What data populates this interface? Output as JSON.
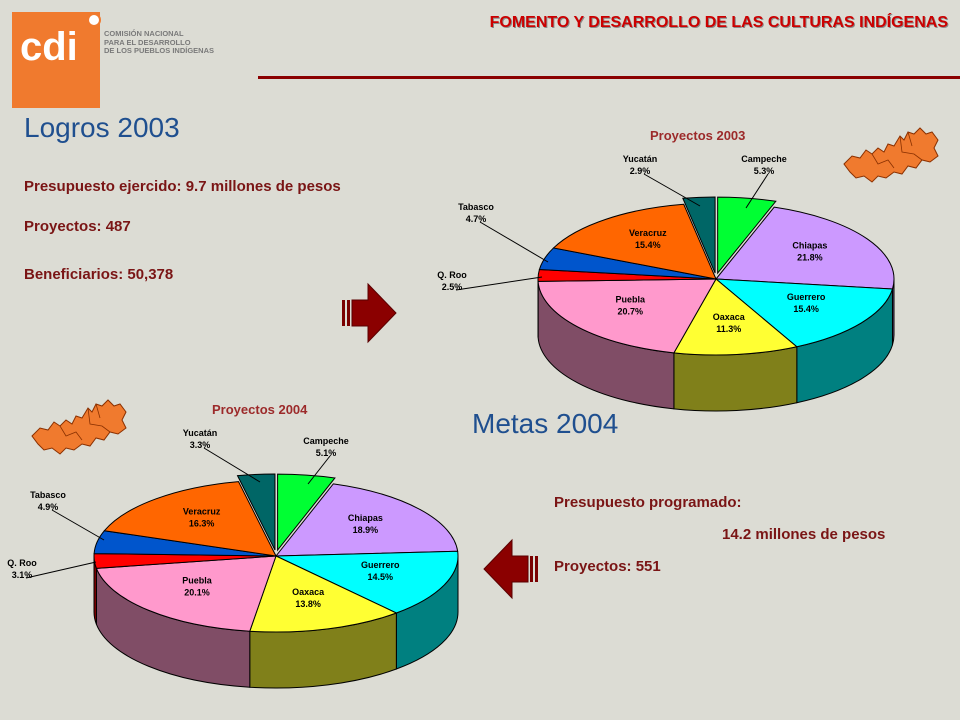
{
  "header": {
    "logo_letters": "cdi",
    "org_name_lines": [
      "COMISIÓN NACIONAL",
      "PARA EL DESARROLLO",
      "DE LOS PUEBLOS INDÍGENAS"
    ],
    "title": "FOMENTO Y DESARROLLO DE LAS CULTURAS INDÍGENAS"
  },
  "logros": {
    "title": "Logros 2003",
    "presupuesto": "Presupuesto ejercido: 9.7 millones de pesos",
    "proyectos": "Proyectos: 487",
    "beneficiarios": "Beneficiarios: 50,378"
  },
  "metas": {
    "title": "Metas 2004",
    "presupuesto_label": "Presupuesto programado:",
    "presupuesto_value": "14.2 millones de pesos",
    "proyectos": "Proyectos: 551"
  },
  "colors": {
    "Campeche": "#00ff33",
    "Chiapas": "#cc99ff",
    "Guerrero": "#00ffff",
    "Oaxaca": "#ffff33",
    "Puebla": "#ff99cc",
    "Q. Roo": "#ff0000",
    "Tabasco": "#0055cc",
    "Veracruz": "#ff6600",
    "Yucatán": "#006666"
  },
  "chart_data": [
    {
      "type": "pie",
      "title": "Proyectos 2003",
      "slices": [
        {
          "label": "Campeche",
          "value": 5.3,
          "value_label": "5.3%"
        },
        {
          "label": "Chiapas",
          "value": 21.8,
          "value_label": "21.8%"
        },
        {
          "label": "Guerrero",
          "value": 15.4,
          "value_label": "15.4%"
        },
        {
          "label": "Oaxaca",
          "value": 11.3,
          "value_label": "11.3%"
        },
        {
          "label": "Puebla",
          "value": 20.7,
          "value_label": "20.7%"
        },
        {
          "label": "Q. Roo",
          "value": 2.5,
          "value_label": "2.5%"
        },
        {
          "label": "Tabasco",
          "value": 4.7,
          "value_label": "4.7%"
        },
        {
          "label": "Veracruz",
          "value": 15.4,
          "value_label": "15.4%"
        },
        {
          "label": "Yucatán",
          "value": 2.9,
          "value_label": "2.9%"
        }
      ]
    },
    {
      "type": "pie",
      "title": "Proyectos 2004",
      "slices": [
        {
          "label": "Campeche",
          "value": 5.1,
          "value_label": "5.1%"
        },
        {
          "label": "Chiapas",
          "value": 18.9,
          "value_label": "18.9%"
        },
        {
          "label": "Guerrero",
          "value": 14.5,
          "value_label": "14.5%"
        },
        {
          "label": "Oaxaca",
          "value": 13.8,
          "value_label": "13.8%"
        },
        {
          "label": "Puebla",
          "value": 20.1,
          "value_label": "20.1%"
        },
        {
          "label": "Q. Roo",
          "value": 3.1,
          "value_label": "3.1%"
        },
        {
          "label": "Tabasco",
          "value": 4.9,
          "value_label": "4.9%"
        },
        {
          "label": "Veracruz",
          "value": 16.3,
          "value_label": "16.3%"
        },
        {
          "label": "Yucatán",
          "value": 3.3,
          "value_label": "3.3%"
        }
      ]
    }
  ]
}
